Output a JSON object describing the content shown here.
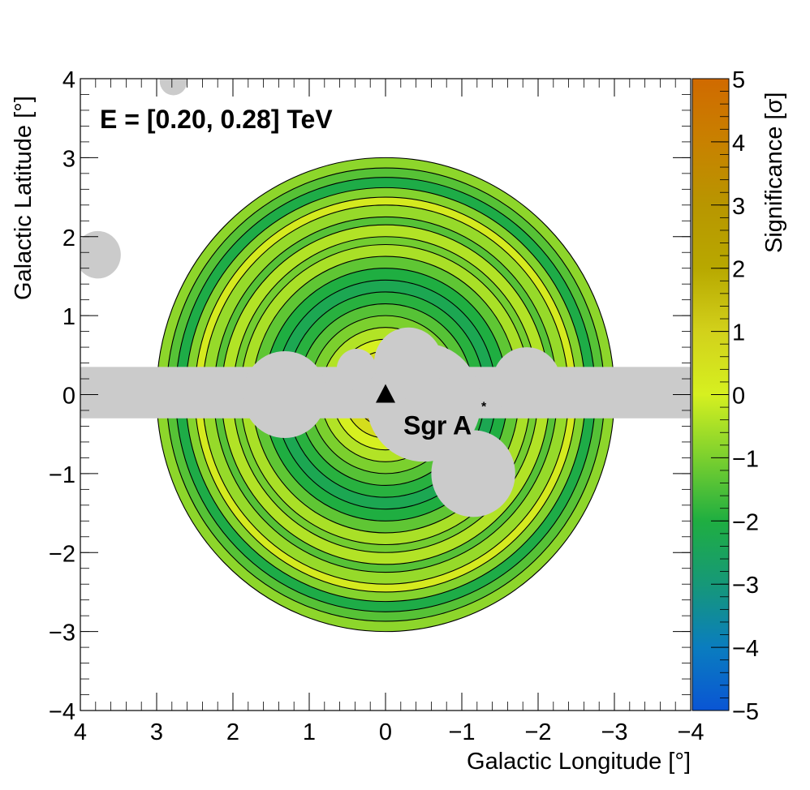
{
  "chart_data": {
    "type": "heatmap",
    "subtype": "significance-map",
    "energy_label": "E = [0.20, 0.28] TeV",
    "xlabel": "Galactic Longitude [°]",
    "ylabel": "Galactic Latitude [°]",
    "colorbar_label": "Significance [σ]",
    "xlim": [
      4,
      -4
    ],
    "ylim": [
      -4,
      4
    ],
    "x_ticks": [
      4,
      3,
      2,
      1,
      0,
      -1,
      -2,
      -3,
      -4
    ],
    "x_tick_labels": [
      "4",
      "3",
      "2",
      "1",
      "0",
      "−1",
      "−2",
      "−3",
      "−4"
    ],
    "y_ticks": [
      4,
      3,
      2,
      1,
      0,
      -1,
      -2,
      -3,
      -4
    ],
    "y_tick_labels": [
      "4",
      "3",
      "2",
      "1",
      "0",
      "−1",
      "−2",
      "−3",
      "−4"
    ],
    "colorbar_range": [
      -5,
      5
    ],
    "colorbar_ticks": [
      5,
      4,
      3,
      2,
      1,
      0,
      -1,
      -2,
      -3,
      -4,
      -5
    ],
    "colorbar_tick_labels": [
      "5",
      "4",
      "3",
      "2",
      "1",
      "0",
      "−1",
      "−2",
      "−3",
      "−4",
      "−5"
    ],
    "colormap_stops": [
      {
        "value": -5,
        "color": "#0a55d4"
      },
      {
        "value": -4,
        "color": "#0a7dbf"
      },
      {
        "value": -3,
        "color": "#169878"
      },
      {
        "value": -2,
        "color": "#1fae41"
      },
      {
        "value": -1,
        "color": "#7bd02e"
      },
      {
        "value": 0,
        "color": "#d6f020"
      },
      {
        "value": 1,
        "color": "#d2d11b"
      },
      {
        "value": 2,
        "color": "#b8a800"
      },
      {
        "value": 3,
        "color": "#b89600"
      },
      {
        "value": 4,
        "color": "#c88100"
      },
      {
        "value": 5,
        "color": "#d06a00"
      }
    ],
    "region_of_interest": {
      "center": [
        0,
        0
      ],
      "radius": 3.0
    },
    "ring_significance": [
      {
        "r_min": 0.0,
        "r_max": 0.4,
        "sigma": 2.5
      },
      {
        "r_min": 0.4,
        "r_max": 0.55,
        "sigma": 0.6
      },
      {
        "r_min": 0.55,
        "r_max": 0.7,
        "sigma": 0.0
      },
      {
        "r_min": 0.7,
        "r_max": 0.85,
        "sigma": -0.4
      },
      {
        "r_min": 0.85,
        "r_max": 1.0,
        "sigma": -1.0
      },
      {
        "r_min": 1.0,
        "r_max": 1.15,
        "sigma": -1.4
      },
      {
        "r_min": 1.15,
        "r_max": 1.3,
        "sigma": -1.9
      },
      {
        "r_min": 1.3,
        "r_max": 1.45,
        "sigma": -2.3
      },
      {
        "r_min": 1.45,
        "r_max": 1.6,
        "sigma": -2.0
      },
      {
        "r_min": 1.6,
        "r_max": 1.75,
        "sigma": -1.3
      },
      {
        "r_min": 1.75,
        "r_max": 1.9,
        "sigma": -0.5
      },
      {
        "r_min": 1.9,
        "r_max": 2.0,
        "sigma": -1.1
      },
      {
        "r_min": 2.0,
        "r_max": 2.15,
        "sigma": -0.4
      },
      {
        "r_min": 2.15,
        "r_max": 2.25,
        "sigma": -1.4
      },
      {
        "r_min": 2.25,
        "r_max": 2.4,
        "sigma": -0.7
      },
      {
        "r_min": 2.4,
        "r_max": 2.5,
        "sigma": 0.2
      },
      {
        "r_min": 2.5,
        "r_max": 2.62,
        "sigma": -0.9
      },
      {
        "r_min": 2.62,
        "r_max": 2.75,
        "sigma": -2.1
      },
      {
        "r_min": 2.75,
        "r_max": 2.87,
        "sigma": -1.4
      },
      {
        "r_min": 2.87,
        "r_max": 3.0,
        "sigma": -0.8
      }
    ],
    "excluded_regions": [
      {
        "type": "band",
        "l_range": [
          4,
          -4
        ],
        "b_range": [
          -0.3,
          0.35
        ]
      },
      {
        "type": "circle",
        "l": 0.38,
        "b": 0.32,
        "r": 0.26
      },
      {
        "type": "circle",
        "l": 1.32,
        "b": 0.0,
        "r": 0.55
      },
      {
        "type": "circle",
        "l": -0.5,
        "b": -0.1,
        "r": 0.75
      },
      {
        "type": "circle",
        "l": -0.3,
        "b": 0.4,
        "r": 0.45
      },
      {
        "type": "circle",
        "l": -1.15,
        "b": -1.0,
        "r": 0.55
      },
      {
        "type": "circle",
        "l": -1.85,
        "b": 0.15,
        "r": 0.45
      },
      {
        "type": "circle",
        "l": 3.77,
        "b": 1.77,
        "r": 0.3
      },
      {
        "type": "circle",
        "l": 2.78,
        "b": 3.97,
        "r": 0.18
      }
    ],
    "source_marker": {
      "name": "Sgr A",
      "superscript": "*",
      "l": 0.0,
      "b": 0.0,
      "marker": "triangle"
    }
  }
}
